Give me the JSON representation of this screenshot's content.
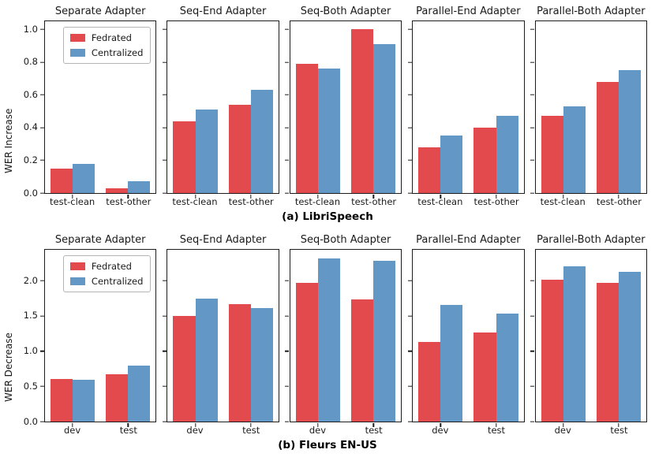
{
  "figure": {
    "legend": [
      "Fedrated",
      "Centralized"
    ],
    "colors": {
      "fedrated": "#e24a4d",
      "centralized": "#6397c6"
    }
  },
  "chart_data": [
    {
      "type": "bar",
      "row_caption": "(a) LibriSpeech",
      "ylabel": "WER Increase",
      "categories": [
        "test-clean",
        "test-other"
      ],
      "yticks": [
        0.0,
        0.2,
        0.4,
        0.6,
        0.8,
        1.0
      ],
      "ytick_labels": [
        "0.0",
        "0.2",
        "0.4",
        "0.6",
        "0.8",
        "1.0"
      ],
      "ylim": [
        0,
        1.05
      ],
      "grid": false,
      "legend_position": "upper-right-of-first-subplot",
      "subplots": [
        {
          "title": "Separate Adapter",
          "series": [
            {
              "name": "Fedrated",
              "values": [
                0.15,
                0.03
              ]
            },
            {
              "name": "Centralized",
              "values": [
                0.18,
                0.07
              ]
            }
          ]
        },
        {
          "title": "Seq-End Adapter",
          "series": [
            {
              "name": "Fedrated",
              "values": [
                0.44,
                0.54
              ]
            },
            {
              "name": "Centralized",
              "values": [
                0.51,
                0.63
              ]
            }
          ]
        },
        {
          "title": "Seq-Both Adapter",
          "series": [
            {
              "name": "Fedrated",
              "values": [
                0.79,
                1.0
              ]
            },
            {
              "name": "Centralized",
              "values": [
                0.76,
                0.91
              ]
            }
          ]
        },
        {
          "title": "Parallel-End Adapter",
          "series": [
            {
              "name": "Fedrated",
              "values": [
                0.28,
                0.4
              ]
            },
            {
              "name": "Centralized",
              "values": [
                0.35,
                0.47
              ]
            }
          ]
        },
        {
          "title": "Parallel-Both Adapter",
          "series": [
            {
              "name": "Fedrated",
              "values": [
                0.47,
                0.68
              ]
            },
            {
              "name": "Centralized",
              "values": [
                0.53,
                0.75
              ]
            }
          ]
        }
      ]
    },
    {
      "type": "bar",
      "row_caption": "(b) Fleurs EN-US",
      "ylabel": "WER Decrease",
      "categories": [
        "dev",
        "test"
      ],
      "yticks": [
        0.0,
        0.5,
        1.0,
        1.5,
        2.0
      ],
      "ytick_labels": [
        "0.0",
        "0.5",
        "1.0",
        "1.5",
        "2.0"
      ],
      "ylim": [
        0,
        2.44
      ],
      "grid": false,
      "legend_position": "upper-right-of-first-subplot",
      "subplots": [
        {
          "title": "Separate Adapter",
          "series": [
            {
              "name": "Fedrated",
              "values": [
                0.6,
                0.67
              ]
            },
            {
              "name": "Centralized",
              "values": [
                0.59,
                0.8
              ]
            }
          ]
        },
        {
          "title": "Seq-End Adapter",
          "series": [
            {
              "name": "Fedrated",
              "values": [
                1.5,
                1.67
              ]
            },
            {
              "name": "Centralized",
              "values": [
                1.75,
                1.61
              ]
            }
          ]
        },
        {
          "title": "Seq-Both Adapter",
          "series": [
            {
              "name": "Fedrated",
              "values": [
                1.97,
                1.74
              ]
            },
            {
              "name": "Centralized",
              "values": [
                2.32,
                2.28
              ]
            }
          ]
        },
        {
          "title": "Parallel-End Adapter",
          "series": [
            {
              "name": "Fedrated",
              "values": [
                1.13,
                1.27
              ]
            },
            {
              "name": "Centralized",
              "values": [
                1.66,
                1.53
              ]
            }
          ]
        },
        {
          "title": "Parallel-Both Adapter",
          "series": [
            {
              "name": "Fedrated",
              "values": [
                2.02,
                1.97
              ]
            },
            {
              "name": "Centralized",
              "values": [
                2.21,
                2.13
              ]
            }
          ]
        }
      ]
    }
  ]
}
